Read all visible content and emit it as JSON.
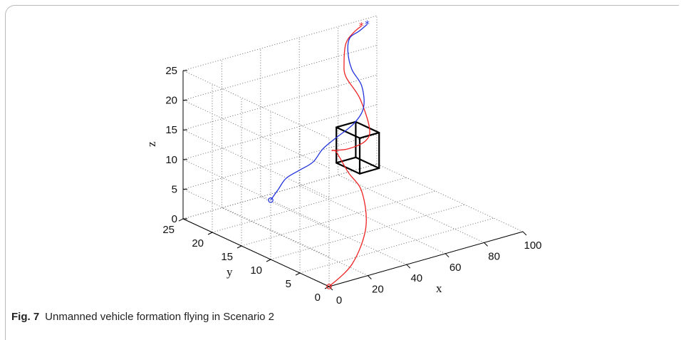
{
  "caption": {
    "figure_label": "Fig. 7",
    "text": "Unmanned vehicle formation flying in Scenario 2"
  },
  "chart_data": {
    "type": "line3d",
    "xlabel": "x",
    "ylabel": "y",
    "zlabel": "z",
    "xlim": [
      0,
      100
    ],
    "ylim": [
      0,
      25
    ],
    "zlim": [
      0,
      25
    ],
    "x_ticks": [
      "0",
      "20",
      "40",
      "60",
      "80",
      "100"
    ],
    "y_ticks": [
      "0",
      "5",
      "10",
      "15",
      "20",
      "25"
    ],
    "z_ticks": [
      "0",
      "5",
      "10",
      "15",
      "20",
      "25"
    ],
    "grid": true,
    "colors": {
      "red_path": "#ee2222",
      "blue_path": "#2233dd",
      "obstacle": "#000000",
      "grid": "#777777"
    },
    "series": [
      {
        "color": "red",
        "marker_start": "o",
        "marker_end": "*",
        "points": [
          [
            0,
            0,
            0
          ],
          [
            15,
            1,
            2
          ],
          [
            28,
            3,
            6
          ],
          [
            35,
            6,
            10
          ],
          [
            40,
            10,
            11
          ],
          [
            46,
            14,
            12
          ],
          [
            50,
            16,
            11
          ],
          [
            52,
            14,
            12
          ],
          [
            55,
            12,
            14
          ],
          [
            57,
            12,
            16
          ],
          [
            58,
            14,
            20
          ],
          [
            60,
            17,
            22
          ],
          [
            65,
            19,
            23
          ],
          [
            75,
            22,
            24
          ],
          [
            85,
            24,
            24
          ],
          [
            92,
            25,
            24
          ]
        ]
      },
      {
        "color": "blue",
        "marker_start": "o",
        "marker_end": "*",
        "points": [
          [
            0,
            10,
            10
          ],
          [
            10,
            12,
            10
          ],
          [
            20,
            14,
            10
          ],
          [
            30,
            15,
            10
          ],
          [
            40,
            16,
            10
          ],
          [
            48,
            17,
            11
          ],
          [
            52,
            16,
            13
          ],
          [
            55,
            14,
            16
          ],
          [
            57,
            13,
            19
          ],
          [
            59,
            14,
            22
          ],
          [
            63,
            17,
            23
          ],
          [
            70,
            20,
            24
          ],
          [
            80,
            23,
            24
          ],
          [
            88,
            24,
            24
          ],
          [
            95,
            25,
            24
          ]
        ]
      }
    ],
    "obstacle": {
      "x": [
        55,
        65
      ],
      "y": [
        13,
        17
      ],
      "z": [
        8,
        14
      ]
    }
  }
}
